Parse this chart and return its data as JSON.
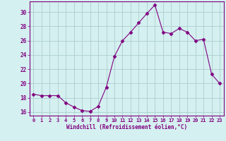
{
  "x": [
    0,
    1,
    2,
    3,
    4,
    5,
    6,
    7,
    8,
    9,
    10,
    11,
    12,
    13,
    14,
    15,
    16,
    17,
    18,
    19,
    20,
    21,
    22,
    23
  ],
  "y": [
    18.5,
    18.3,
    18.3,
    18.3,
    17.3,
    16.7,
    16.2,
    16.1,
    16.8,
    19.5,
    23.8,
    26.0,
    27.2,
    28.5,
    29.8,
    31.0,
    27.2,
    27.0,
    27.7,
    27.2,
    26.0,
    26.2,
    21.3,
    20.0
  ],
  "line_color": "#800080",
  "marker": "D",
  "marker_size": 2.5,
  "bg_color": "#d5f0f0",
  "grid_color": "#aacfcf",
  "xlabel": "Windchill (Refroidissement éolien,°C)",
  "xlabel_color": "#800080",
  "tick_color": "#800080",
  "spine_color": "#800080",
  "ylabel_ticks": [
    16,
    18,
    20,
    22,
    24,
    26,
    28,
    30
  ],
  "xlim": [
    -0.5,
    23.5
  ],
  "ylim": [
    15.5,
    31.5
  ]
}
